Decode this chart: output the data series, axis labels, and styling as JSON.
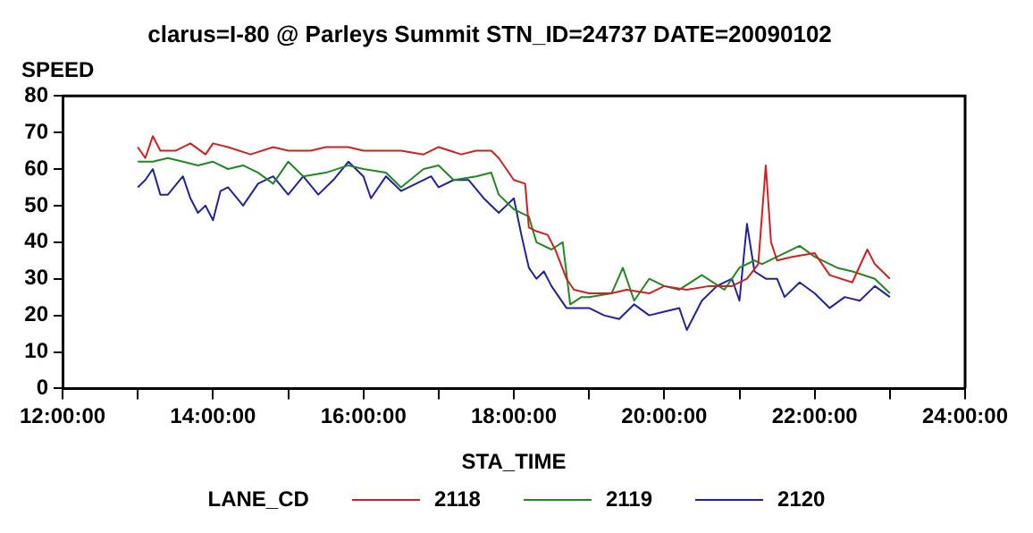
{
  "chart_data": {
    "type": "line",
    "title": "clarus=I-80 @ Parleys Summit STN_ID=24737 DATE=20090102",
    "xlabel": "STA_TIME",
    "ylabel": "SPEED",
    "legend_title": "LANE_CD",
    "legend": "bottom",
    "grid": false,
    "line_style": "solid",
    "marker": "none",
    "xlim": [
      12,
      24
    ],
    "xticks": [
      {
        "value": 12,
        "label": "12:00:00"
      },
      {
        "value": 13,
        "label": null
      },
      {
        "value": 14,
        "label": "14:00:00"
      },
      {
        "value": 15,
        "label": null
      },
      {
        "value": 16,
        "label": "16:00:00"
      },
      {
        "value": 17,
        "label": null
      },
      {
        "value": 18,
        "label": "18:00:00"
      },
      {
        "value": 19,
        "label": null
      },
      {
        "value": 20,
        "label": "20:00:00"
      },
      {
        "value": 21,
        "label": null
      },
      {
        "value": 22,
        "label": "22:00:00"
      },
      {
        "value": 23,
        "label": null
      },
      {
        "value": 24,
        "label": "24:00:00"
      }
    ],
    "ylim": [
      0,
      80
    ],
    "yticks": [
      0,
      10,
      20,
      30,
      40,
      50,
      60,
      70,
      80
    ],
    "series": [
      {
        "name": "2118",
        "color": "#cc2222",
        "x": [
          13,
          13.1,
          13.2,
          13.3,
          13.5,
          13.7,
          13.9,
          14,
          14.2,
          14.5,
          14.8,
          15,
          15.3,
          15.5,
          15.8,
          16,
          16.3,
          16.5,
          16.8,
          17,
          17.3,
          17.5,
          17.7,
          17.8,
          18,
          18.15,
          18.2,
          18.3,
          18.45,
          18.55,
          18.7,
          18.8,
          19,
          19.3,
          19.5,
          19.8,
          20,
          20.3,
          20.6,
          20.9,
          21.1,
          21.25,
          21.35,
          21.42,
          21.5,
          21.7,
          22,
          22.2,
          22.5,
          22.7,
          22.8,
          23
        ],
        "values": [
          66,
          63,
          69,
          65,
          65,
          67,
          64,
          67,
          66,
          64,
          66,
          65,
          65,
          66,
          66,
          65,
          65,
          65,
          64,
          66,
          64,
          65,
          65,
          63,
          57,
          56,
          44,
          43,
          42,
          38,
          30,
          27,
          26,
          26,
          27,
          26,
          28,
          27,
          28,
          28,
          30,
          34,
          61,
          40,
          35,
          36,
          37,
          31,
          29,
          38,
          34,
          30
        ]
      },
      {
        "name": "2119",
        "color": "#228822",
        "x": [
          13,
          13.2,
          13.4,
          13.6,
          13.8,
          14,
          14.2,
          14.4,
          14.6,
          14.8,
          15,
          15.2,
          15.5,
          15.8,
          16,
          16.3,
          16.5,
          16.8,
          17,
          17.2,
          17.5,
          17.7,
          17.8,
          18,
          18.1,
          18.2,
          18.3,
          18.5,
          18.65,
          18.75,
          18.9,
          19,
          19.3,
          19.45,
          19.6,
          19.8,
          20,
          20.2,
          20.5,
          20.8,
          21,
          21.2,
          21.3,
          21.5,
          21.8,
          22,
          22.3,
          22.5,
          22.8,
          23
        ],
        "values": [
          62,
          62,
          63,
          62,
          61,
          62,
          60,
          61,
          59,
          56,
          62,
          58,
          59,
          61,
          60,
          59,
          55,
          60,
          61,
          57,
          58,
          59,
          53,
          49,
          48,
          47,
          40,
          38,
          40,
          23,
          25,
          25,
          26,
          33,
          24,
          30,
          28,
          27,
          31,
          27,
          33,
          35,
          34,
          36,
          39,
          36,
          33,
          32,
          30,
          26
        ]
      },
      {
        "name": "2120",
        "color": "#222299",
        "x": [
          13,
          13.1,
          13.2,
          13.3,
          13.4,
          13.6,
          13.7,
          13.8,
          13.9,
          14,
          14.1,
          14.2,
          14.4,
          14.6,
          14.8,
          15,
          15.2,
          15.4,
          15.6,
          15.8,
          16,
          16.1,
          16.3,
          16.5,
          16.7,
          16.9,
          17,
          17.2,
          17.4,
          17.6,
          17.8,
          17.9,
          18,
          18.1,
          18.2,
          18.3,
          18.4,
          18.5,
          18.7,
          18.8,
          19,
          19.2,
          19.4,
          19.6,
          19.8,
          20,
          20.2,
          20.3,
          20.5,
          20.7,
          20.9,
          21,
          21.1,
          21.2,
          21.35,
          21.5,
          21.6,
          21.8,
          22,
          22.2,
          22.4,
          22.6,
          22.8,
          23
        ],
        "values": [
          55,
          57,
          60,
          53,
          53,
          58,
          52,
          48,
          50,
          46,
          54,
          55,
          50,
          56,
          58,
          53,
          58,
          53,
          57,
          62,
          58,
          52,
          58,
          54,
          56,
          58,
          55,
          57,
          57,
          52,
          48,
          50,
          52,
          42,
          33,
          30,
          32,
          28,
          22,
          22,
          22,
          20,
          19,
          23,
          20,
          21,
          22,
          16,
          24,
          28,
          30,
          24,
          45,
          32,
          30,
          30,
          25,
          29,
          26,
          22,
          25,
          24,
          28,
          25
        ]
      }
    ]
  }
}
